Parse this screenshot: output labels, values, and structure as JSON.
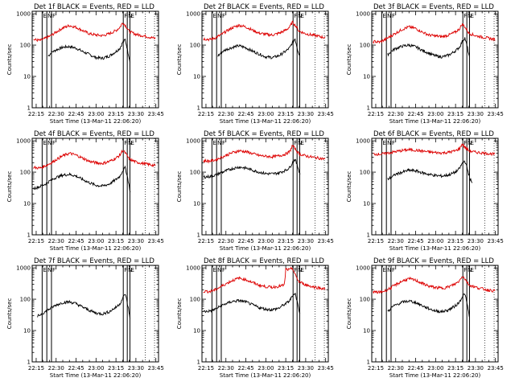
{
  "chart_data": {
    "type": "line",
    "scale": "log",
    "ylim": [
      1,
      1200
    ],
    "xlim": [
      "22:12:00",
      "23:47:00"
    ],
    "x_tick_labels": [
      "22:15",
      "22:30",
      "22:45",
      "23:00",
      "23:15",
      "23:30",
      "23:45"
    ],
    "y_tick_labels": [
      "1",
      "10",
      "100",
      "1000"
    ],
    "ylabel": "Counts/sec",
    "xlabel": "Start Time (13-Mar-11 22:06:20)",
    "line_colors": {
      "events": "#000000",
      "lld": "#dd0000"
    },
    "markers": [
      {
        "time": "22:19:30",
        "label": "E"
      },
      {
        "time": "22:23:00",
        "label": "N"
      },
      {
        "time": "22:26:30",
        "label": "F"
      },
      {
        "time": "23:20:30",
        "label": "F"
      },
      {
        "time": "23:23:30",
        "label": "N"
      },
      {
        "time": "23:25:30",
        "label": "E"
      }
    ],
    "panels": [
      {
        "title": "Det 1f BLACK = Events, RED = LLD",
        "series": [
          {
            "name": "Events",
            "color": "black",
            "x": [
              "22:24",
              "22:27",
              "22:30",
              "22:35",
              "22:40",
              "22:45",
              "22:50",
              "22:55",
              "23:00",
              "23:05",
              "23:10",
              "23:15",
              "23:18",
              "23:20",
              "23:22",
              "23:24",
              "23:26"
            ],
            "values": [
              45,
              60,
              70,
              85,
              90,
              80,
              62,
              50,
              40,
              38,
              45,
              62,
              80,
              120,
              150,
              60,
              25
            ]
          },
          {
            "name": "LLD",
            "color": "red",
            "x": [
              "22:13",
              "22:18",
              "22:22",
              "22:26",
              "22:30",
              "22:35",
              "22:40",
              "22:45",
              "22:50",
              "22:55",
              "23:00",
              "23:05",
              "23:10",
              "23:15",
              "23:18",
              "23:20",
              "23:22",
              "23:25",
              "23:30",
              "23:35",
              "23:40",
              "23:45"
            ],
            "values": [
              150,
              140,
              165,
              200,
              260,
              350,
              420,
              370,
              290,
              230,
              210,
              200,
              230,
              290,
              370,
              520,
              430,
              270,
              220,
              200,
              180,
              160
            ]
          }
        ]
      },
      {
        "title": "Det 2f BLACK = Events, RED = LLD",
        "series": [
          {
            "name": "Events",
            "color": "black",
            "x": [
              "22:24",
              "22:27",
              "22:30",
              "22:35",
              "22:40",
              "22:45",
              "22:50",
              "22:55",
              "23:00",
              "23:05",
              "23:10",
              "23:15",
              "23:18",
              "23:20",
              "23:22",
              "23:24",
              "23:26"
            ],
            "values": [
              45,
              60,
              72,
              85,
              95,
              82,
              64,
              52,
              42,
              40,
              46,
              64,
              82,
              120,
              160,
              70,
              40
            ]
          },
          {
            "name": "LLD",
            "color": "red",
            "x": [
              "22:13",
              "22:18",
              "22:22",
              "22:26",
              "22:30",
              "22:35",
              "22:40",
              "22:45",
              "22:50",
              "22:55",
              "23:00",
              "23:05",
              "23:10",
              "23:15",
              "23:18",
              "23:20",
              "23:22",
              "23:25",
              "23:30",
              "23:35",
              "23:40",
              "23:45"
            ],
            "values": [
              160,
              150,
              170,
              210,
              270,
              360,
              430,
              380,
              300,
              240,
              220,
              210,
              240,
              300,
              380,
              540,
              440,
              280,
              230,
              210,
              190,
              170
            ]
          }
        ]
      },
      {
        "title": "Det 3f BLACK = Events, RED = LLD",
        "series": [
          {
            "name": "Events",
            "color": "black",
            "x": [
              "22:24",
              "22:27",
              "22:30",
              "22:35",
              "22:40",
              "22:45",
              "22:50",
              "22:55",
              "23:00",
              "23:05",
              "23:10",
              "23:15",
              "23:18",
              "23:20",
              "23:22",
              "23:24",
              "23:26"
            ],
            "values": [
              50,
              65,
              78,
              92,
              100,
              88,
              68,
              55,
              45,
              42,
              48,
              66,
              86,
              130,
              170,
              80,
              30
            ]
          },
          {
            "name": "LLD",
            "color": "red",
            "x": [
              "22:13",
              "22:18",
              "22:22",
              "22:26",
              "22:30",
              "22:35",
              "22:40",
              "22:45",
              "22:50",
              "22:55",
              "23:00",
              "23:05",
              "23:10",
              "23:15",
              "23:18",
              "23:20",
              "23:22",
              "23:25",
              "23:30",
              "23:35",
              "23:40",
              "23:45"
            ],
            "values": [
              130,
              125,
              150,
              190,
              240,
              320,
              380,
              340,
              260,
              210,
              195,
              185,
              210,
              260,
              330,
              470,
              380,
              240,
              200,
              180,
              165,
              150
            ]
          }
        ]
      },
      {
        "title": "Det 4f BLACK = Events, RED = LLD",
        "series": [
          {
            "name": "Events",
            "color": "black",
            "x": [
              "22:13",
              "22:18",
              "22:22",
              "22:26",
              "22:30",
              "22:35",
              "22:40",
              "22:45",
              "22:50",
              "22:55",
              "23:00",
              "23:05",
              "23:10",
              "23:15",
              "23:18",
              "23:20",
              "23:22",
              "23:24",
              "23:26"
            ],
            "values": [
              30,
              35,
              42,
              55,
              68,
              80,
              85,
              75,
              58,
              46,
              38,
              36,
              42,
              58,
              75,
              110,
              140,
              60,
              20
            ]
          },
          {
            "name": "LLD",
            "color": "red",
            "x": [
              "22:13",
              "22:18",
              "22:22",
              "22:26",
              "22:30",
              "22:35",
              "22:40",
              "22:45",
              "22:50",
              "22:55",
              "23:00",
              "23:05",
              "23:10",
              "23:15",
              "23:18",
              "23:20",
              "23:22",
              "23:25",
              "23:30",
              "23:35",
              "23:40",
              "23:45"
            ],
            "values": [
              140,
              135,
              160,
              195,
              250,
              330,
              400,
              350,
              280,
              220,
              200,
              190,
              220,
              280,
              350,
              500,
              410,
              260,
              210,
              190,
              175,
              160
            ]
          }
        ]
      },
      {
        "title": "Det 5f BLACK = Events, RED = LLD",
        "series": [
          {
            "name": "Events",
            "color": "black",
            "x": [
              "22:13",
              "22:18",
              "22:22",
              "22:26",
              "22:30",
              "22:35",
              "22:40",
              "22:45",
              "22:50",
              "22:55",
              "23:00",
              "23:05",
              "23:10",
              "23:15",
              "23:18",
              "23:20",
              "23:22",
              "23:24",
              "23:26"
            ],
            "values": [
              70,
              72,
              80,
              95,
              110,
              130,
              145,
              135,
              115,
              100,
              90,
              88,
              95,
              115,
              140,
              200,
              260,
              150,
              80
            ]
          },
          {
            "name": "LLD",
            "color": "red",
            "x": [
              "22:13",
              "22:18",
              "22:22",
              "22:26",
              "22:30",
              "22:35",
              "22:40",
              "22:45",
              "22:50",
              "22:55",
              "23:00",
              "23:05",
              "23:10",
              "23:15",
              "23:18",
              "23:20",
              "23:22",
              "23:25",
              "23:30",
              "23:35",
              "23:40",
              "23:45"
            ],
            "values": [
              230,
              225,
              245,
              290,
              340,
              420,
              480,
              450,
              390,
              340,
              320,
              310,
              330,
              380,
              450,
              700,
              560,
              380,
              330,
              300,
              280,
              260
            ]
          }
        ]
      },
      {
        "title": "Det 6f BLACK = Events, RED = LLD",
        "series": [
          {
            "name": "Events",
            "color": "black",
            "x": [
              "22:24",
              "22:27",
              "22:30",
              "22:35",
              "22:40",
              "22:45",
              "22:50",
              "22:55",
              "23:00",
              "23:05",
              "23:10",
              "23:15",
              "23:18",
              "23:20",
              "23:22",
              "23:24",
              "23:26",
              "23:28"
            ],
            "values": [
              60,
              70,
              85,
              100,
              115,
              110,
              95,
              85,
              78,
              75,
              82,
              100,
              130,
              190,
              230,
              120,
              60,
              40
            ]
          },
          {
            "name": "LLD",
            "color": "red",
            "x": [
              "22:13",
              "22:18",
              "22:22",
              "22:26",
              "22:30",
              "22:35",
              "22:40",
              "22:45",
              "22:50",
              "22:55",
              "23:00",
              "23:05",
              "23:10",
              "23:15",
              "23:18",
              "23:20",
              "23:22",
              "23:25",
              "23:30",
              "23:35",
              "23:40",
              "23:45"
            ],
            "values": [
              380,
              375,
              390,
              420,
              450,
              490,
              520,
              500,
              470,
              440,
              420,
              410,
              430,
              480,
              560,
              800,
              620,
              480,
              430,
              410,
              390,
              370
            ]
          }
        ]
      },
      {
        "title": "Det 7f BLACK = Events, RED = LLD",
        "series": [
          {
            "name": "Events",
            "color": "black",
            "x": [
              "22:16",
              "22:18",
              "22:22",
              "22:26",
              "22:30",
              "22:35",
              "22:40",
              "22:45",
              "22:50",
              "22:55",
              "23:00",
              "23:05",
              "23:10",
              "23:15",
              "23:18",
              "23:20",
              "23:22",
              "23:24",
              "23:26"
            ],
            "values": [
              28,
              32,
              40,
              52,
              65,
              78,
              82,
              72,
              56,
              44,
              36,
              34,
              40,
              55,
              72,
              105,
              150,
              60,
              20
            ]
          }
        ]
      },
      {
        "title": "Det 8f BLACK = Events, RED = LLD",
        "series": [
          {
            "name": "Events",
            "color": "black",
            "x": [
              "22:13",
              "22:18",
              "22:22",
              "22:26",
              "22:30",
              "22:35",
              "22:40",
              "22:45",
              "22:50",
              "22:55",
              "23:00",
              "23:05",
              "23:10",
              "23:12",
              "23:15",
              "23:18",
              "23:20",
              "23:22",
              "23:24",
              "23:26"
            ],
            "values": [
              40,
              42,
              48,
              60,
              72,
              85,
              90,
              82,
              66,
              54,
              48,
              46,
              52,
              60,
              72,
              90,
              130,
              160,
              70,
              30
            ]
          },
          {
            "name": "LLD",
            "color": "red",
            "x": [
              "22:13",
              "22:18",
              "22:22",
              "22:26",
              "22:30",
              "22:35",
              "22:40",
              "22:45",
              "22:50",
              "22:55",
              "23:00",
              "23:05",
              "23:10",
              "23:14",
              "23:15",
              "23:18",
              "23:20",
              "23:22",
              "23:25",
              "23:30",
              "23:35",
              "23:40",
              "23:45"
            ],
            "values": [
              180,
              175,
              200,
              250,
              310,
              400,
              470,
              420,
              340,
              280,
              250,
              240,
              260,
              280,
              900,
              850,
              1000,
              600,
              360,
              290,
              250,
              230,
              210
            ]
          }
        ]
      },
      {
        "title": "Det 9f BLACK = Events, RED = LLD",
        "series": [
          {
            "name": "Events",
            "color": "black",
            "x": [
              "22:24",
              "22:27",
              "22:30",
              "22:35",
              "22:40",
              "22:45",
              "22:50",
              "22:55",
              "23:00",
              "23:05",
              "23:10",
              "23:15",
              "23:18",
              "23:20",
              "23:22",
              "23:24",
              "23:26"
            ],
            "values": [
              40,
              55,
              65,
              80,
              88,
              78,
              62,
              50,
              42,
              40,
              46,
              62,
              82,
              120,
              150,
              60,
              20
            ]
          },
          {
            "name": "LLD",
            "color": "red",
            "x": [
              "22:13",
              "22:18",
              "22:22",
              "22:26",
              "22:30",
              "22:35",
              "22:40",
              "22:45",
              "22:50",
              "22:55",
              "23:00",
              "23:05",
              "23:10",
              "23:15",
              "23:18",
              "23:20",
              "23:22",
              "23:25",
              "23:30",
              "23:35",
              "23:40",
              "23:45"
            ],
            "values": [
              170,
              165,
              185,
              225,
              290,
              380,
              450,
              400,
              320,
              260,
              235,
              225,
              250,
              310,
              390,
              560,
              450,
              290,
              240,
              215,
              195,
              180
            ]
          }
        ]
      }
    ]
  }
}
